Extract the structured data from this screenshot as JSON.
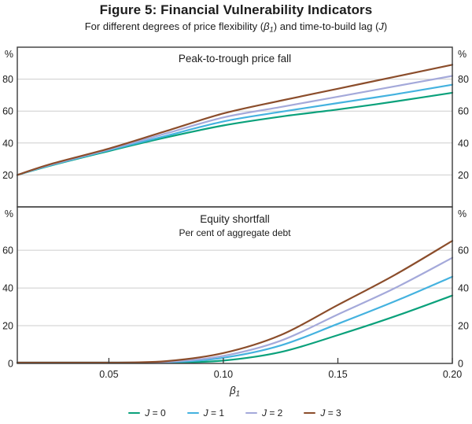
{
  "figure": {
    "title": "Figure 5: Financial Vulnerability Indicators",
    "subtitle_parts": {
      "before": "For different degrees of price flexibility (",
      "beta": "β",
      "beta_sub": "1",
      "middle": ") and time-to-build lag (",
      "j": "J",
      "after": ")"
    }
  },
  "axes": {
    "x_label_symbol": "β",
    "x_label_sub": "1",
    "xlim": [
      0.01,
      0.2
    ],
    "x_tick_values": [
      0.05,
      0.1,
      0.15,
      0.2
    ],
    "x_tick_labels": [
      "0.05",
      "0.10",
      "0.15",
      "0.20"
    ],
    "percent_symbol": "%",
    "grid_color": "#cdcdcd",
    "frame_color": "#3a3a3a",
    "text_color": "#1c1c1c"
  },
  "legend": {
    "items": [
      {
        "label_symbol": "J",
        "label_rest": " = 0"
      },
      {
        "label_symbol": "J",
        "label_rest": " = 1"
      },
      {
        "label_symbol": "J",
        "label_rest": " = 2"
      },
      {
        "label_symbol": "J",
        "label_rest": " = 3"
      }
    ]
  },
  "chart_data": [
    {
      "type": "line",
      "panel": "top",
      "title": "Peak-to-trough price fall",
      "subtitle": "",
      "ylabel": "%",
      "ylim": [
        0,
        100
      ],
      "yticks": [
        20,
        40,
        60,
        80
      ],
      "x": [
        0.01,
        0.025,
        0.05,
        0.075,
        0.1,
        0.125,
        0.15,
        0.175,
        0.2
      ],
      "series": [
        {
          "name": "J = 0",
          "color": "#0aa17b",
          "values": [
            20,
            26,
            35,
            43.5,
            51,
            56.5,
            61,
            66,
            71.5
          ]
        },
        {
          "name": "J = 1",
          "color": "#44b2df",
          "values": [
            20,
            26.3,
            35.5,
            44.5,
            53.5,
            59.5,
            65,
            70.5,
            76.5
          ]
        },
        {
          "name": "J = 2",
          "color": "#a4a9da",
          "values": [
            20,
            26.6,
            36,
            46,
            56,
            62.5,
            69,
            75.5,
            82
          ]
        },
        {
          "name": "J = 3",
          "color": "#8b4d2b",
          "values": [
            20,
            27,
            36.5,
            47.5,
            58.5,
            66.5,
            74,
            81.5,
            89
          ]
        }
      ]
    },
    {
      "type": "line",
      "panel": "bottom",
      "title": "Equity shortfall",
      "subtitle": "Per cent of aggregate debt",
      "ylabel": "%",
      "ylim": [
        0,
        83
      ],
      "yticks": [
        0,
        20,
        40,
        60
      ],
      "x": [
        0.01,
        0.025,
        0.05,
        0.075,
        0.1,
        0.125,
        0.15,
        0.175,
        0.2
      ],
      "series": [
        {
          "name": "J = 0",
          "color": "#0aa17b",
          "values": [
            0,
            0,
            0,
            0.3,
            1.5,
            6,
            15,
            25,
            36
          ]
        },
        {
          "name": "J = 1",
          "color": "#44b2df",
          "values": [
            0,
            0,
            0,
            0.5,
            3,
            9.5,
            21,
            33,
            46
          ]
        },
        {
          "name": "J = 2",
          "color": "#a4a9da",
          "values": [
            0,
            0,
            0,
            0.8,
            4,
            12,
            26,
            40,
            56
          ]
        },
        {
          "name": "J = 3",
          "color": "#8b4d2b",
          "values": [
            0,
            0,
            0.2,
            1.2,
            5.5,
            15,
            31,
            47,
            65
          ]
        }
      ]
    }
  ]
}
